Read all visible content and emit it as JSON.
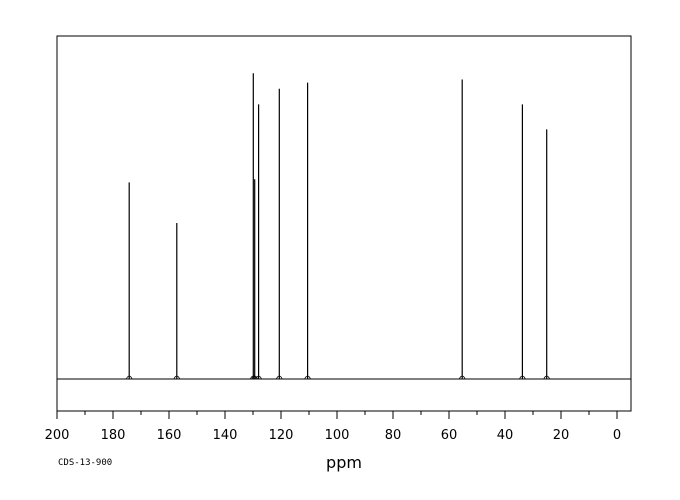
{
  "chart_data": {
    "type": "line",
    "xlabel": "ppm",
    "xlim": [
      200,
      -5
    ],
    "x_reversed": true,
    "grid": false,
    "ticks_major": [
      200,
      180,
      160,
      140,
      120,
      100,
      80,
      60,
      40,
      20,
      0
    ],
    "tick_labels": [
      "200",
      "180",
      "160",
      "140",
      "120",
      "100",
      "80",
      "60",
      "40",
      "20",
      "0"
    ],
    "ticks_minor": [
      190,
      170,
      150,
      130,
      110,
      90,
      70,
      50,
      30,
      10
    ],
    "peaks": [
      {
        "ppm": 174.2,
        "height": 0.63
      },
      {
        "ppm": 157.2,
        "height": 0.5
      },
      {
        "ppm": 129.9,
        "height": 0.98
      },
      {
        "ppm": 129.4,
        "height": 0.64
      },
      {
        "ppm": 128.0,
        "height": 0.88
      },
      {
        "ppm": 120.6,
        "height": 0.93
      },
      {
        "ppm": 110.5,
        "height": 0.95
      },
      {
        "ppm": 55.3,
        "height": 0.96
      },
      {
        "ppm": 33.8,
        "height": 0.88
      },
      {
        "ppm": 25.1,
        "height": 0.8
      }
    ]
  },
  "footer": {
    "code": "CDS-13-900"
  }
}
